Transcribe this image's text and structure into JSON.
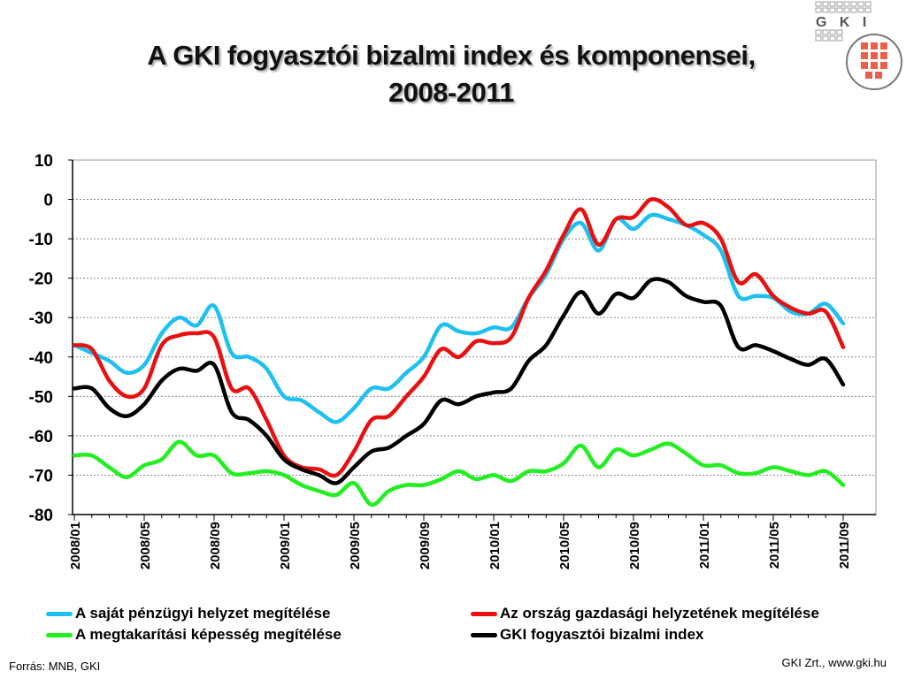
{
  "header": {
    "title_line1": "A GKI fogyasztói bizalmi index és komponensei,",
    "title_line2": "2008-2011"
  },
  "logo": {
    "text": "G K I",
    "accent_color": "#e8604a",
    "icon": "gki-logo-icon"
  },
  "footer": {
    "source": "Forrás: MNB, GKI",
    "credit": "GKI Zrt., www.gki.hu"
  },
  "chart_data": {
    "type": "line",
    "title": "A GKI fogyasztói bizalmi index és komponensei, 2008-2011",
    "xlabel": "",
    "ylabel": "",
    "ylim": [
      -80,
      10
    ],
    "yticks": [
      10,
      0,
      -10,
      -20,
      -30,
      -40,
      -50,
      -60,
      -70,
      -80
    ],
    "x_tick_labels": [
      "2008/01",
      "2008/05",
      "2008/09",
      "2009/01",
      "2009/05",
      "2009/09",
      "2010/01",
      "2010/05",
      "2010/09",
      "2011/01",
      "2011/05",
      "2011/09"
    ],
    "x": [
      "2008/01",
      "2008/02",
      "2008/03",
      "2008/04",
      "2008/05",
      "2008/06",
      "2008/07",
      "2008/08",
      "2008/09",
      "2008/10",
      "2008/11",
      "2008/12",
      "2009/01",
      "2009/02",
      "2009/03",
      "2009/04",
      "2009/05",
      "2009/06",
      "2009/07",
      "2009/08",
      "2009/09",
      "2009/10",
      "2009/11",
      "2009/12",
      "2010/01",
      "2010/02",
      "2010/03",
      "2010/04",
      "2010/05",
      "2010/06",
      "2010/07",
      "2010/08",
      "2010/09",
      "2010/10",
      "2010/11",
      "2010/12",
      "2011/01",
      "2011/02",
      "2011/03",
      "2011/04",
      "2011/05",
      "2011/06",
      "2011/07",
      "2011/08",
      "2011/09"
    ],
    "grid": true,
    "legend_position": "bottom",
    "series": [
      {
        "name": "A saját pénzügyi helyzet megítélése",
        "color": "#1ec0f0",
        "values": [
          -37,
          -39,
          -41,
          -44,
          -42,
          -34,
          -30,
          -32,
          -27,
          -39,
          -40,
          -43,
          -50,
          -51,
          -54,
          -56.5,
          -53,
          -48,
          -48,
          -44,
          -40,
          -32,
          -33.5,
          -34,
          -32.5,
          -32.5,
          -25,
          -19,
          -10,
          -6,
          -13,
          -5,
          -7.5,
          -4,
          -5,
          -6.5,
          -9,
          -13,
          -24.5,
          -24.5,
          -25,
          -28.5,
          -29,
          -26.5,
          -31.5
        ]
      },
      {
        "name": "Az ország gazdasági helyzetének megítélése",
        "color": "#e81010",
        "values": [
          -37,
          -38,
          -46,
          -50,
          -48,
          -37,
          -34.5,
          -34,
          -35,
          -48,
          -48,
          -56,
          -65,
          -68,
          -68.5,
          -70,
          -64,
          -56,
          -55,
          -50,
          -45,
          -38,
          -40,
          -36,
          -36.5,
          -35,
          -25,
          -18,
          -9,
          -2.5,
          -11.5,
          -5,
          -4.5,
          0,
          -2,
          -6.5,
          -6,
          -10,
          -21,
          -19,
          -24.5,
          -27.5,
          -29,
          -28.5,
          -37.5
        ]
      },
      {
        "name": "A megtakarítási képesség megítélése",
        "color": "#22ee22",
        "values": [
          -65,
          -65,
          -68,
          -70.5,
          -67.5,
          -66,
          -61.5,
          -65,
          -65,
          -69.5,
          -69.5,
          -69,
          -70,
          -72.5,
          -74,
          -75,
          -72,
          -77.5,
          -74,
          -72.5,
          -72.5,
          -71,
          -69,
          -71,
          -70,
          -71.5,
          -69,
          -69,
          -67,
          -62.5,
          -68,
          -63.5,
          -65,
          -63.5,
          -62,
          -64.5,
          -67.5,
          -67.5,
          -69.5,
          -69.5,
          -68,
          -69,
          -70,
          -69,
          -72.5
        ]
      },
      {
        "name": "GKI fogyasztói bizalmi index",
        "color": "#000000",
        "values": [
          -48,
          -48,
          -53,
          -55,
          -52,
          -46,
          -43,
          -43.5,
          -42,
          -54,
          -56,
          -60,
          -66,
          -68.5,
          -70,
          -72,
          -68,
          -64,
          -63,
          -60,
          -57,
          -51,
          -52,
          -50,
          -49,
          -48,
          -41,
          -37,
          -29.5,
          -23.5,
          -29,
          -24,
          -25,
          -20.5,
          -21,
          -24.5,
          -26,
          -27,
          -37.5,
          -37,
          -38.5,
          -40.5,
          -42,
          -40.5,
          -47
        ]
      }
    ]
  }
}
